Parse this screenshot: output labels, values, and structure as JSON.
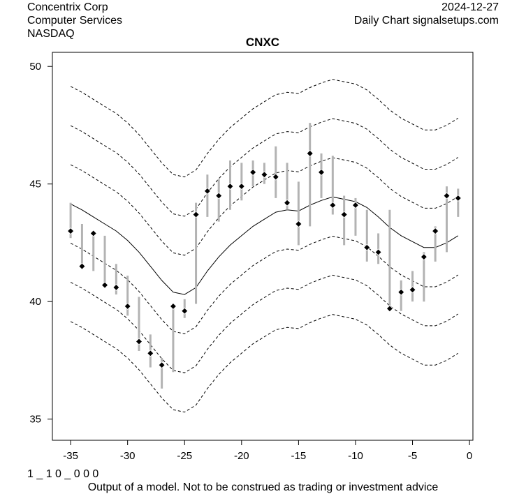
{
  "header": {
    "company": "Concentrix Corp",
    "sector": "Computer Services",
    "exchange": "NASDAQ",
    "date": "2024-12-27",
    "source": "Daily Chart signalsetups.com"
  },
  "footer": {
    "code": "1 _ 1 0 _ 0 0 0",
    "disclaimer": "Output of a model. Not to be construed as trading or investment advice"
  },
  "chart_data": {
    "type": "line",
    "title": "CNXC",
    "xlabel": "",
    "ylabel": "",
    "xlim": [
      -36.6,
      0.3
    ],
    "ylim": [
      34.1,
      50.6
    ],
    "x_ticks": [
      -35,
      -30,
      -25,
      -20,
      -15,
      -10,
      -5,
      0
    ],
    "y_ticks": [
      35,
      40,
      45,
      50
    ],
    "grid": false,
    "colors": {
      "model": "#000000",
      "bands": "#000000",
      "ranges": "#b3b3b3",
      "points": "#000000"
    },
    "model_line": {
      "x": [
        -35,
        -34,
        -33,
        -32,
        -31,
        -30,
        -29,
        -28,
        -27,
        -26,
        -25,
        -24,
        -23,
        -22,
        -21,
        -20,
        -19,
        -18,
        -17,
        -16,
        -15,
        -14,
        -13,
        -12,
        -11,
        -10,
        -9,
        -8,
        -7,
        -6,
        -5,
        -4,
        -3,
        -2,
        -1
      ],
      "y": [
        44.15,
        43.9,
        43.6,
        43.3,
        43.0,
        42.6,
        42.1,
        41.5,
        40.9,
        40.4,
        40.3,
        40.6,
        41.3,
        41.9,
        42.4,
        42.8,
        43.2,
        43.5,
        43.8,
        43.9,
        43.85,
        44.1,
        44.3,
        44.45,
        44.35,
        44.25,
        44.0,
        43.6,
        43.15,
        42.8,
        42.55,
        42.3,
        42.3,
        42.5,
        42.8
      ]
    },
    "band_offsets": [
      -5,
      -3.33,
      -1.67,
      1.67,
      3.33,
      5
    ],
    "price_points": [
      {
        "x": -35,
        "low": 42.7,
        "high": 44.2,
        "close": 43.0
      },
      {
        "x": -34,
        "low": 41.5,
        "high": 43.3,
        "close": 41.5
      },
      {
        "x": -33,
        "low": 41.3,
        "high": 43.0,
        "close": 42.9
      },
      {
        "x": -32,
        "low": 40.6,
        "high": 42.8,
        "close": 40.7
      },
      {
        "x": -31,
        "low": 40.3,
        "high": 41.6,
        "close": 40.6
      },
      {
        "x": -30,
        "low": 39.4,
        "high": 41.1,
        "close": 39.8
      },
      {
        "x": -29,
        "low": 37.9,
        "high": 40.2,
        "close": 38.3
      },
      {
        "x": -28,
        "low": 37.2,
        "high": 38.6,
        "close": 37.8
      },
      {
        "x": -27,
        "low": 36.3,
        "high": 37.6,
        "close": 37.3
      },
      {
        "x": -26,
        "low": 37.0,
        "high": 39.9,
        "close": 39.8
      },
      {
        "x": -25,
        "low": 39.3,
        "high": 40.1,
        "close": 39.6
      },
      {
        "x": -24,
        "low": 39.9,
        "high": 44.2,
        "close": 43.7
      },
      {
        "x": -23,
        "low": 43.6,
        "high": 45.4,
        "close": 44.7
      },
      {
        "x": -22,
        "low": 43.4,
        "high": 45.2,
        "close": 44.5
      },
      {
        "x": -21,
        "low": 43.9,
        "high": 46.0,
        "close": 44.9
      },
      {
        "x": -20,
        "low": 44.3,
        "high": 45.9,
        "close": 44.9
      },
      {
        "x": -19,
        "low": 44.9,
        "high": 46.0,
        "close": 45.5
      },
      {
        "x": -18,
        "low": 45.0,
        "high": 45.9,
        "close": 45.4
      },
      {
        "x": -17,
        "low": 44.4,
        "high": 46.6,
        "close": 45.3
      },
      {
        "x": -16,
        "low": 43.9,
        "high": 45.9,
        "close": 44.2
      },
      {
        "x": -15,
        "low": 42.4,
        "high": 45.1,
        "close": 43.3
      },
      {
        "x": -14,
        "low": 43.2,
        "high": 47.6,
        "close": 46.3
      },
      {
        "x": -13,
        "low": 44.4,
        "high": 46.3,
        "close": 45.5
      },
      {
        "x": -12,
        "low": 43.7,
        "high": 46.2,
        "close": 44.1
      },
      {
        "x": -11,
        "low": 42.4,
        "high": 44.5,
        "close": 43.7
      },
      {
        "x": -10,
        "low": 42.8,
        "high": 44.4,
        "close": 44.1
      },
      {
        "x": -9,
        "low": 41.7,
        "high": 43.9,
        "close": 42.3
      },
      {
        "x": -8,
        "low": 41.6,
        "high": 42.9,
        "close": 42.1
      },
      {
        "x": -7,
        "low": 39.6,
        "high": 43.9,
        "close": 39.7
      },
      {
        "x": -6,
        "low": 39.6,
        "high": 40.9,
        "close": 40.4
      },
      {
        "x": -5,
        "low": 40.0,
        "high": 41.3,
        "close": 40.5
      },
      {
        "x": -4,
        "low": 40.0,
        "high": 42.1,
        "close": 41.9
      },
      {
        "x": -3,
        "low": 41.7,
        "high": 43.2,
        "close": 43.0
      },
      {
        "x": -2,
        "low": 42.1,
        "high": 44.9,
        "close": 44.5
      },
      {
        "x": -1,
        "low": 43.6,
        "high": 44.8,
        "close": 44.4
      }
    ]
  }
}
